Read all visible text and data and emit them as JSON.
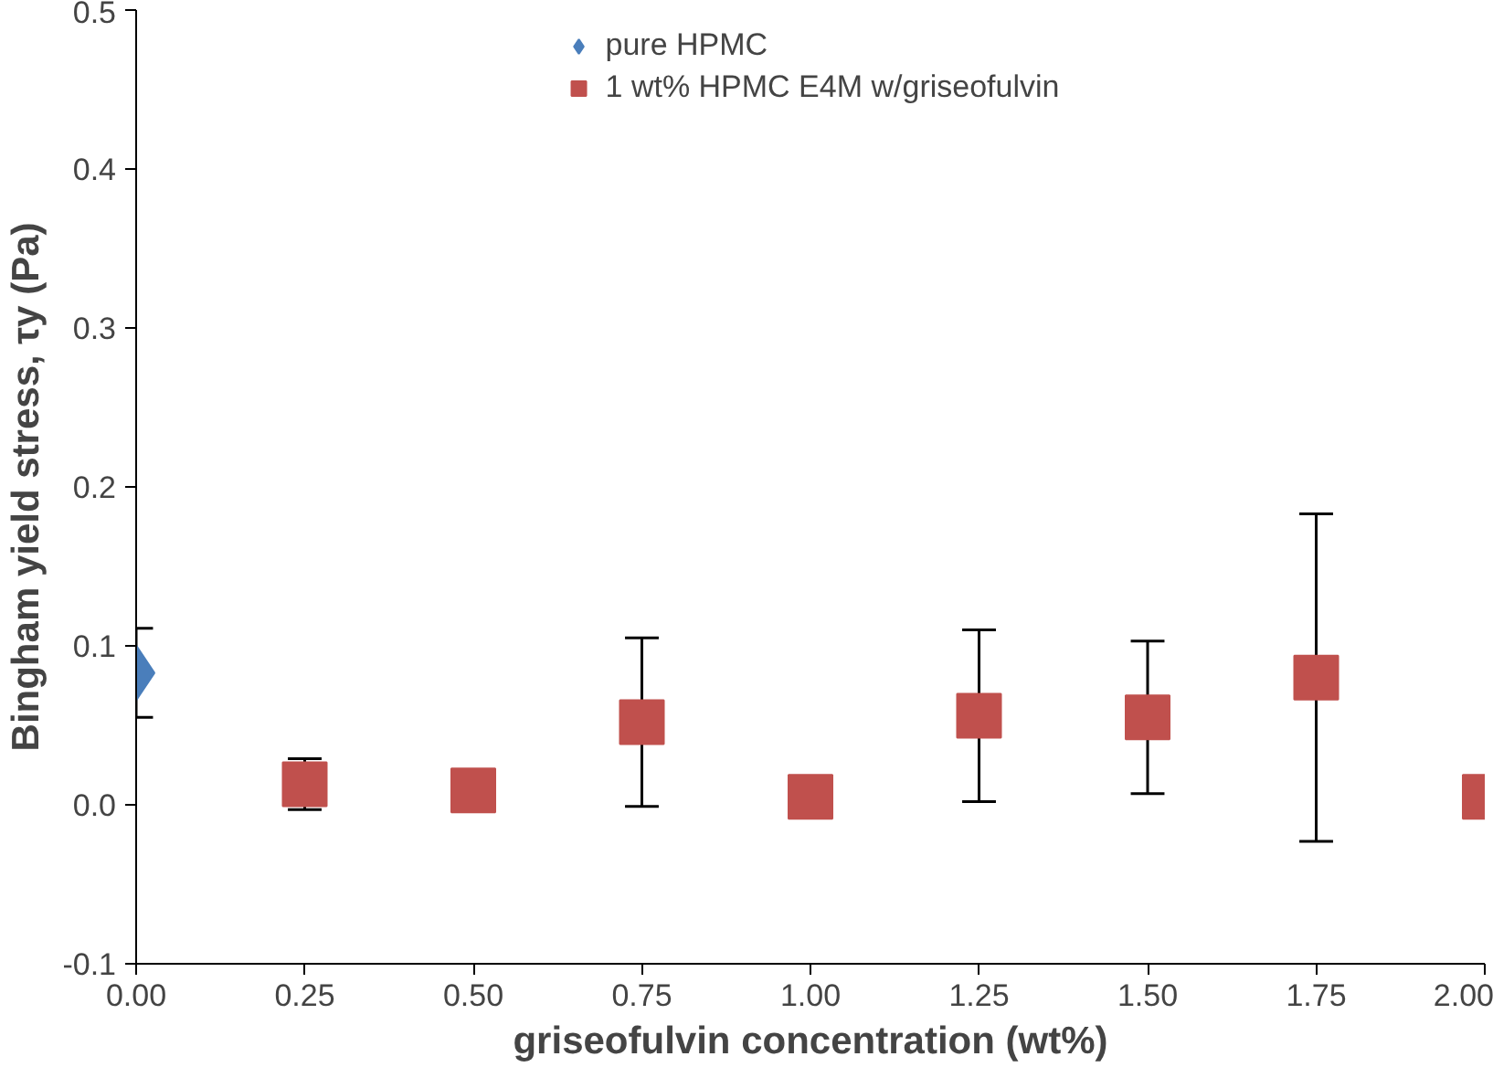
{
  "chart_data": {
    "type": "scatter",
    "xlabel": "griseofulvin concentration (wt%)",
    "ylabel": "Bingham yield stress, τy (Pa)",
    "xlim": [
      0,
      2
    ],
    "ylim": [
      -0.1,
      0.5
    ],
    "xticks": [
      {
        "value": 0,
        "label": "0.00"
      },
      {
        "value": 0.25,
        "label": "0.25"
      },
      {
        "value": 0.5,
        "label": "0.50"
      },
      {
        "value": 0.75,
        "label": "0.75"
      },
      {
        "value": 1,
        "label": "1.00"
      },
      {
        "value": 1.25,
        "label": "1.25"
      },
      {
        "value": 1.5,
        "label": "1.50"
      },
      {
        "value": 1.75,
        "label": "1.75"
      },
      {
        "value": 2,
        "label": "2.00"
      }
    ],
    "yticks": [
      {
        "value": -0.1,
        "label": "-0.1"
      },
      {
        "value": 0,
        "label": "0.0"
      },
      {
        "value": 0.1,
        "label": "0.1"
      },
      {
        "value": 0.2,
        "label": "0.2"
      },
      {
        "value": 0.3,
        "label": "0.3"
      },
      {
        "value": 0.4,
        "label": "0.4"
      },
      {
        "value": 0.5,
        "label": "0.5"
      }
    ],
    "grid": false,
    "legend": "top",
    "series": [
      {
        "name": "pure HPMC",
        "color": "#4a7ebb",
        "marker": "diamond",
        "x": [
          0
        ],
        "values": [
          0.083
        ],
        "errors": [
          0.028
        ]
      },
      {
        "name": "1 wt% HPMC E4M w/griseofulvin",
        "color": "#c0504d",
        "marker": "square",
        "x": [
          0.25,
          0.5,
          0.75,
          1,
          1.25,
          1.5,
          1.75,
          2
        ],
        "values": [
          0.013,
          0.009,
          0.052,
          0.005,
          0.056,
          0.055,
          0.08,
          0.005
        ],
        "errors": [
          0.016,
          null,
          0.053,
          null,
          0.054,
          0.048,
          0.103,
          null
        ]
      }
    ]
  }
}
